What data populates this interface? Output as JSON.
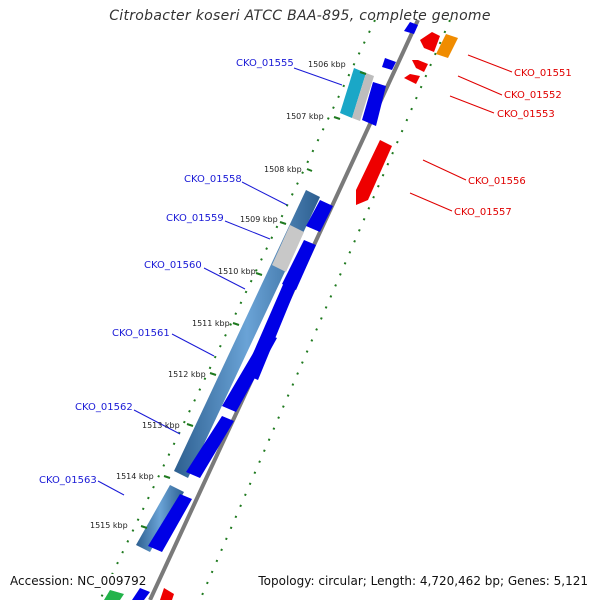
{
  "title": "Citrobacter koseri ATCC BAA-895, complete genome",
  "accession": "Accession: NC_009792",
  "topology": "Topology: circular; Length: 4,720,462 bp; Genes: 5,121",
  "ticks": [
    "1506 kbp",
    "1507 kbp",
    "1508 kbp",
    "1509 kbp",
    "1510 kbp",
    "1511 kbp",
    "1512 kbp",
    "1513 kbp",
    "1514 kbp",
    "1515 kbp"
  ],
  "left_genes": [
    "CKO_01555",
    "CKO_01558",
    "CKO_01559",
    "CKO_01560",
    "CKO_01561",
    "CKO_01562",
    "CKO_01563"
  ],
  "right_genes": [
    "CKO_01551",
    "CKO_01552",
    "CKO_01553",
    "CKO_01556",
    "CKO_01557"
  ],
  "colors": {
    "forward_cds": "#0000e6",
    "reverse_cds": "#ee0000",
    "orf_blue": "#3a78b0",
    "gray": "#c0c0c0",
    "cyan": "#1aa7c7",
    "orange": "#f08c00",
    "green": "#22b34a",
    "gc_dots": "#1f7a1f",
    "backbone": "#777777"
  }
}
